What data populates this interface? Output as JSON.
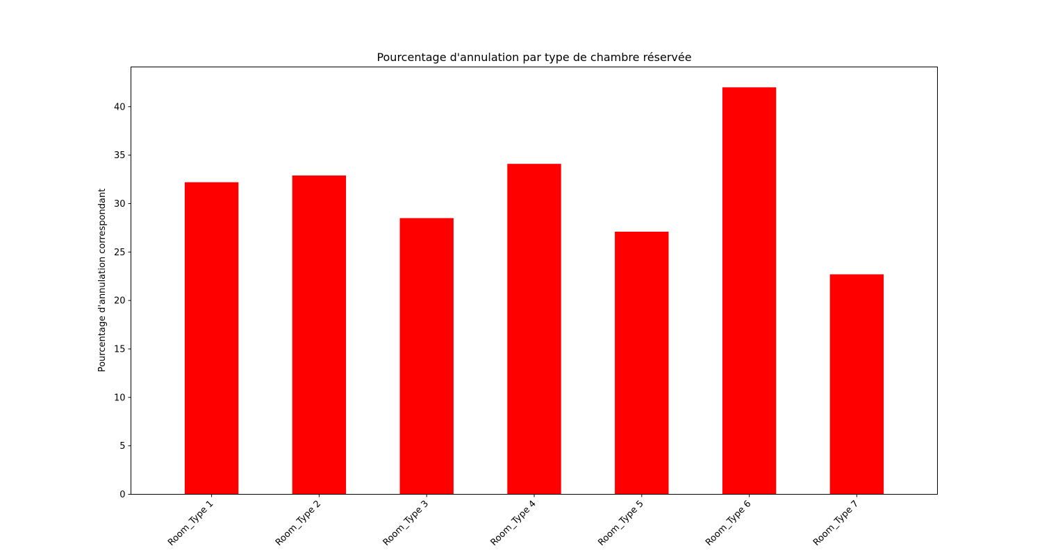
{
  "colors": {
    "bar": "#ff0000",
    "axis": "#000000",
    "background": "#ffffff"
  },
  "chart_data": {
    "type": "bar",
    "title": "Pourcentage d'annulation par type de chambre réservée",
    "xlabel": "",
    "ylabel": "Pourcentage d'annulation correspondant",
    "categories": [
      "Room_Type 1",
      "Room_Type 2",
      "Room_Type 3",
      "Room_Type 4",
      "Room_Type 5",
      "Room_Type 6",
      "Room_Type 7"
    ],
    "values": [
      32.2,
      32.9,
      28.5,
      34.1,
      27.1,
      42.0,
      22.7
    ],
    "ylim": [
      0,
      44.1
    ],
    "yticks": [
      0,
      5,
      10,
      15,
      20,
      25,
      30,
      35,
      40
    ],
    "grid": false,
    "legend": "none"
  }
}
